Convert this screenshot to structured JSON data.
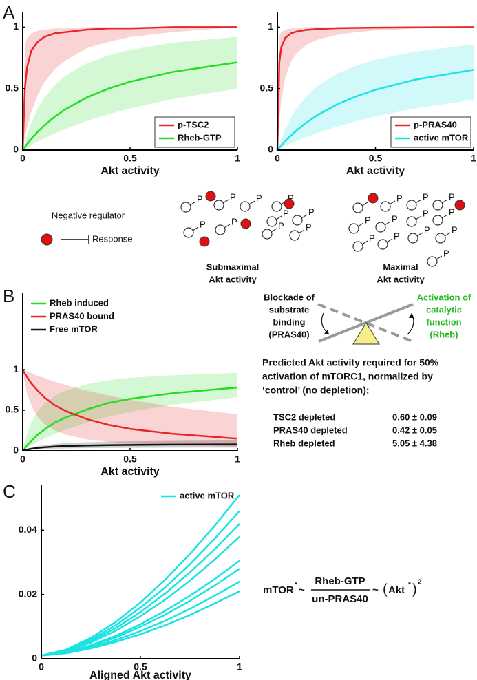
{
  "panel_labels": [
    "A",
    "B",
    "C"
  ],
  "chart_data": [
    {
      "type": "line",
      "x_label": "Akt activity",
      "x": [
        0,
        0.01,
        0.02,
        0.04,
        0.07,
        0.1,
        0.15,
        0.2,
        0.3,
        0.4,
        0.5,
        0.7,
        1
      ],
      "xlim": [
        0,
        1
      ],
      "xticks": [
        0,
        0.5,
        1
      ],
      "ylim": [
        0,
        1.12
      ],
      "yticks": [
        0,
        0.5,
        1
      ],
      "legend": "lower right",
      "legend_frame": true,
      "series": [
        {
          "name": "p-TSC2",
          "color": "#e8262a",
          "values": [
            0,
            0.5,
            0.67,
            0.81,
            0.88,
            0.92,
            0.95,
            0.96,
            0.98,
            0.99,
            0.99,
            1,
            1
          ],
          "lower": [
            0,
            0.1,
            0.18,
            0.31,
            0.45,
            0.55,
            0.66,
            0.73,
            0.83,
            0.88,
            0.92,
            0.96,
            1
          ],
          "upper": [
            0,
            0.84,
            0.91,
            0.95,
            0.97,
            0.98,
            0.99,
            0.99,
            1,
            1,
            1,
            1,
            1
          ]
        },
        {
          "name": "Rheb-GTP",
          "color": "#22dd22",
          "values": [
            0,
            0.024,
            0.048,
            0.091,
            0.149,
            0.2,
            0.273,
            0.333,
            0.429,
            0.5,
            0.556,
            0.636,
            0.714
          ],
          "lower": [
            0,
            0.01,
            0.02,
            0.04,
            0.07,
            0.095,
            0.136,
            0.173,
            0.238,
            0.292,
            0.339,
            0.416,
            0.5
          ],
          "upper": [
            0,
            0.066,
            0.125,
            0.223,
            0.337,
            0.424,
            0.53,
            0.606,
            0.707,
            0.771,
            0.815,
            0.873,
            0.922
          ]
        }
      ]
    },
    {
      "type": "line",
      "x_label": "Akt activity",
      "x": [
        0,
        0.01,
        0.02,
        0.04,
        0.07,
        0.1,
        0.15,
        0.2,
        0.3,
        0.4,
        0.5,
        0.7,
        1
      ],
      "xlim": [
        0,
        1
      ],
      "xticks": [
        0,
        0.5,
        1
      ],
      "ylim": [
        0,
        1.12
      ],
      "yticks": [
        0,
        0.5,
        1
      ],
      "legend": "lower right",
      "legend_frame": true,
      "series": [
        {
          "name": "p-PRAS40",
          "color": "#e8262a",
          "values": [
            0,
            0.717,
            0.837,
            0.913,
            0.95,
            0.965,
            0.978,
            0.984,
            0.991,
            0.994,
            0.996,
            0.998,
            1
          ],
          "lower": [
            0,
            0.258,
            0.412,
            0.589,
            0.721,
            0.792,
            0.858,
            0.896,
            0.936,
            0.958,
            0.972,
            0.988,
            1
          ],
          "upper": [
            0,
            0.93,
            0.96,
            0.98,
            0.99,
            0.99,
            1,
            1,
            1,
            1,
            1,
            1,
            1
          ]
        },
        {
          "name": "active mTOR",
          "color": "#19e3e3",
          "values": [
            0,
            0.019,
            0.038,
            0.073,
            0.12,
            0.163,
            0.226,
            0.28,
            0.368,
            0.436,
            0.49,
            0.572,
            0.653
          ],
          "lower": [
            0,
            0.008,
            0.016,
            0.032,
            0.054,
            0.075,
            0.107,
            0.137,
            0.189,
            0.234,
            0.273,
            0.338,
            0.41
          ],
          "upper": [
            0,
            0.049,
            0.094,
            0.172,
            0.267,
            0.343,
            0.441,
            0.515,
            0.618,
            0.687,
            0.736,
            0.801,
            0.858
          ]
        }
      ]
    },
    {
      "type": "line",
      "x_label": "Akt activity",
      "x": [
        0,
        0.01,
        0.02,
        0.04,
        0.07,
        0.1,
        0.15,
        0.2,
        0.3,
        0.4,
        0.5,
        0.7,
        1
      ],
      "xlim": [
        0,
        1
      ],
      "xticks": [
        0,
        0.5,
        1
      ],
      "ylim": [
        0,
        1.95
      ],
      "yticks": [
        0,
        0.5,
        1
      ],
      "legend": "upper left",
      "legend_frame": false,
      "series": [
        {
          "name": "Rheb induced",
          "color": "#22dd22",
          "values": [
            0,
            0.03,
            0.07,
            0.12,
            0.2,
            0.26,
            0.35,
            0.41,
            0.51,
            0.59,
            0.64,
            0.71,
            0.78
          ],
          "lower": [
            0,
            0.017,
            0.034,
            0.066,
            0.11,
            0.15,
            0.21,
            0.26,
            0.35,
            0.42,
            0.48,
            0.57,
            0.66
          ],
          "upper": [
            0,
            0.12,
            0.21,
            0.35,
            0.49,
            0.58,
            0.68,
            0.74,
            0.82,
            0.87,
            0.9,
            0.93,
            0.96
          ]
        },
        {
          "name": "PRAS40 bound",
          "color": "#e8262a",
          "values": [
            1,
            0.95,
            0.91,
            0.83,
            0.74,
            0.66,
            0.56,
            0.49,
            0.39,
            0.32,
            0.27,
            0.21,
            0.15
          ],
          "lower": [
            1,
            0.83,
            0.71,
            0.56,
            0.42,
            0.33,
            0.25,
            0.2,
            0.14,
            0.11,
            0.09,
            0.07,
            0.05
          ],
          "upper": [
            1,
            0.99,
            0.98,
            0.96,
            0.92,
            0.9,
            0.85,
            0.81,
            0.74,
            0.68,
            0.63,
            0.54,
            0.45
          ]
        },
        {
          "name": "Free mTOR",
          "color": "#111111",
          "values": [
            0,
            0.008,
            0.015,
            0.025,
            0.036,
            0.044,
            0.053,
            0.059,
            0.066,
            0.07,
            0.073,
            0.077,
            0.08
          ],
          "lower": [
            0,
            0.004,
            0.008,
            0.013,
            0.018,
            0.022,
            0.027,
            0.03,
            0.033,
            0.035,
            0.037,
            0.039,
            0.04
          ],
          "upper": [
            0,
            0.013,
            0.024,
            0.04,
            0.058,
            0.07,
            0.085,
            0.094,
            0.106,
            0.112,
            0.117,
            0.123,
            0.128
          ]
        }
      ]
    },
    {
      "type": "line",
      "x_label": "Aligned Akt activity",
      "x": [
        0,
        0.125,
        0.25,
        0.375,
        0.5,
        0.625,
        0.75,
        0.875,
        1
      ],
      "xlim": [
        0,
        1
      ],
      "xticks": [
        0,
        0.5,
        1
      ],
      "ylim": [
        0,
        0.054
      ],
      "yticks": [
        0,
        0.02,
        0.04
      ],
      "legend": "upper right",
      "legend_frame": false,
      "series": [
        {
          "name": "active mTOR",
          "color": "#19e3e3",
          "values": [
            0.001,
            0.0028,
            0.0065,
            0.0114,
            0.0175,
            0.0246,
            0.0326,
            0.0414,
            0.051
          ]
        },
        {
          "color": "#19e3e3",
          "values": [
            0.001,
            0.0026,
            0.0059,
            0.0104,
            0.0159,
            0.0222,
            0.0294,
            0.0374,
            0.046
          ]
        },
        {
          "color": "#19e3e3",
          "values": [
            0.001,
            0.0025,
            0.0055,
            0.0095,
            0.0145,
            0.0203,
            0.0269,
            0.0341,
            0.042
          ]
        },
        {
          "color": "#19e3e3",
          "values": [
            0.001,
            0.0023,
            0.005,
            0.0087,
            0.0132,
            0.0184,
            0.0243,
            0.0309,
            0.038
          ]
        },
        {
          "color": "#19e3e3",
          "values": [
            0.001,
            0.0021,
            0.0042,
            0.0071,
            0.0107,
            0.0149,
            0.0196,
            0.0248,
            0.0305
          ]
        },
        {
          "color": "#19e3e3",
          "values": [
            0.001,
            0.002,
            0.0039,
            0.0066,
            0.0099,
            0.0137,
            0.018,
            0.0228,
            0.028
          ]
        },
        {
          "color": "#19e3e3",
          "values": [
            0.001,
            0.0018,
            0.0035,
            0.0058,
            0.0086,
            0.0118,
            0.0155,
            0.0196,
            0.024
          ]
        },
        {
          "color": "#19e3e3",
          "values": [
            0.001,
            0.0017,
            0.0032,
            0.0052,
            0.0076,
            0.0104,
            0.0136,
            0.0172,
            0.021
          ]
        }
      ]
    }
  ],
  "diagram_a": {
    "negative_regulator": "Negative regulator",
    "response": "Response",
    "phospho": "P",
    "submaximal": [
      "Submaximal",
      "Akt activity"
    ],
    "maximal": [
      "Maximal",
      "Akt activity"
    ]
  },
  "diagram_b": {
    "blockade": [
      "Blockade of",
      "substrate",
      "binding",
      "(PRAS40)"
    ],
    "activation": [
      "Activation of",
      "catalytic",
      "function",
      "(Rheb)"
    ]
  },
  "prediction": {
    "text": [
      "Predicted Akt activity required for 50%",
      "activation of mTORC1, normalized by",
      "‘control’ (no depletion):"
    ],
    "rows": [
      [
        "TSC2 depleted",
        "0.60 ± 0.09"
      ],
      [
        "PRAS40 depleted",
        "0.42 ± 0.05"
      ],
      [
        "Rheb depleted",
        "5.05 ± 4.38"
      ]
    ]
  },
  "equation": {
    "lhs": "mTOR",
    "star": "*",
    "tilde": "~",
    "numerator": "Rheb-GTP",
    "denominator": "un-PRAS40",
    "open": "(",
    "akt": "Akt",
    "close": ")",
    "power": "2"
  }
}
